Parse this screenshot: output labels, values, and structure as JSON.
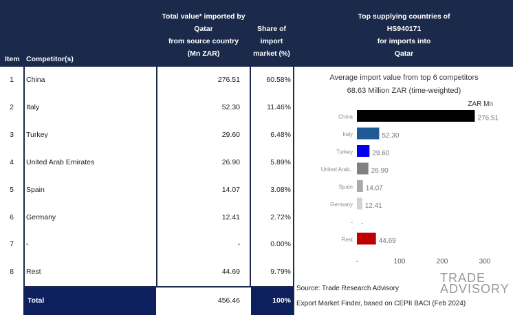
{
  "table": {
    "headers": {
      "item": "Item",
      "competitor": "Competitor(s)",
      "value": [
        "Total value* imported by",
        "Qatar",
        "from source country",
        "(Mn ZAR)"
      ],
      "share": [
        "Share of",
        "import",
        "market (%)"
      ],
      "top": [
        "Top supplying countries of",
        "HS940171",
        "for imports into",
        "Qatar"
      ]
    },
    "rows": [
      {
        "item": "1",
        "competitor": "China",
        "value": "276.51",
        "share": "60.58%"
      },
      {
        "item": "2",
        "competitor": "Italy",
        "value": "52.30",
        "share": "11.46%"
      },
      {
        "item": "3",
        "competitor": "Turkey",
        "value": "29.60",
        "share": "6.48%"
      },
      {
        "item": "4",
        "competitor": "United Arab Emirates",
        "value": "26.90",
        "share": "5.89%"
      },
      {
        "item": "5",
        "competitor": "Spain",
        "value": "14.07",
        "share": "3.08%"
      },
      {
        "item": "6",
        "competitor": "Germany",
        "value": "12.41",
        "share": "2.72%"
      },
      {
        "item": "7",
        "competitor": "-",
        "value": "-",
        "share": "0.00%"
      },
      {
        "item": "8",
        "competitor": "Rest",
        "value": "44.69",
        "share": "9.79%"
      }
    ],
    "total": {
      "label": "Total",
      "value": "456.46",
      "share": "100%"
    }
  },
  "chart_data": {
    "type": "bar",
    "orientation": "horizontal",
    "title": "Average import value from top 6 competitors",
    "subtitle": "68.63 Million ZAR (time-weighted)",
    "unit_label": "ZAR Mn",
    "categories": [
      "China",
      "Italy",
      "Turkey",
      "United Arab..",
      "Spain",
      "Germany",
      "-",
      "Rest"
    ],
    "values": [
      276.51,
      52.3,
      29.6,
      26.9,
      14.07,
      12.41,
      null,
      44.69
    ],
    "value_labels": [
      "276.51",
      "52.30",
      "29.60",
      "26.90",
      "14.07",
      "12.41",
      "-",
      "44.69"
    ],
    "colors": [
      "#000000",
      "#1f5a96",
      "#0000ee",
      "#808080",
      "#a9a9a9",
      "#d3d3d3",
      "#ffffff",
      "#c00000"
    ],
    "x_ticks": [
      0,
      100,
      200,
      300
    ],
    "x_tick_labels": [
      "-",
      "100",
      "200",
      "300"
    ],
    "xlim": [
      0,
      300
    ],
    "grid": false
  },
  "footer": {
    "source": "Source: Trade Research Advisory",
    "note": "Export Market Finder, based on CEPII BACI (Feb 2024)",
    "logo_line1": "TRADE",
    "logo_line2": "ADVISORY"
  }
}
